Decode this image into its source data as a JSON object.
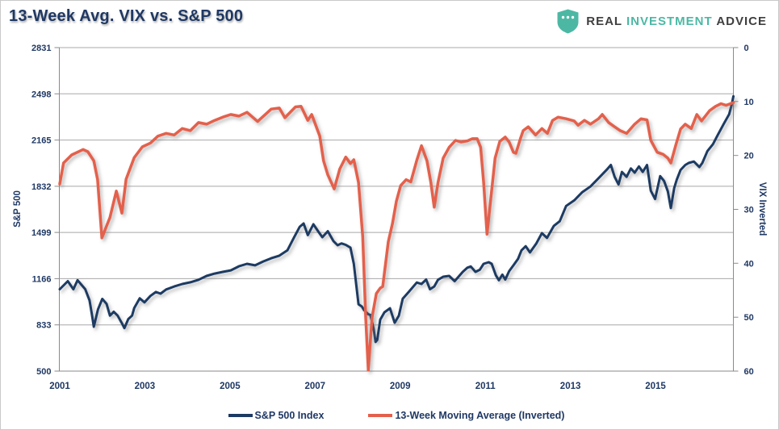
{
  "header": {
    "title": "13-Week Avg. VIX vs. S&P 500",
    "logo": {
      "part1": "REAL",
      "part2": "INVESTMENT",
      "part3": "ADVICE"
    }
  },
  "axes": {
    "left_title": "S&P 500",
    "right_title": "VIX Inverted"
  },
  "legend": {
    "items": [
      {
        "label": "S&P 500 Index"
      },
      {
        "label": "13-Week Moving Average (Inverted)"
      }
    ]
  },
  "colors": {
    "text_navy": "#1f3864",
    "sp500_line": "#1c3a63",
    "vix_line": "#e4604b",
    "gridline": "#a8a8a8",
    "axis_line": "#8a8a8a",
    "logo_teal": "#4cb8a4",
    "logo_dark": "#3f3f3f"
  },
  "chart_data": {
    "type": "line",
    "title": "13-Week Avg. VIX vs. S&P 500",
    "x_range": [
      2001,
      2016.83
    ],
    "x_ticks": [
      2001,
      2003,
      2005,
      2007,
      2009,
      2011,
      2013,
      2015
    ],
    "left_axis": {
      "label": "S&P 500",
      "range": [
        500,
        2831
      ],
      "ticks": [
        2831,
        2498,
        2165,
        1832,
        1499,
        1166,
        833,
        500
      ]
    },
    "right_axis": {
      "label": "VIX Inverted",
      "range": [
        0,
        60
      ],
      "ticks": [
        0,
        10,
        20,
        30,
        40,
        50,
        60
      ],
      "inverted": true
    },
    "grid": "horizontal",
    "legend_position": "bottom",
    "series": [
      {
        "name": "S&P 500 Index",
        "axis": "left",
        "color": "#1c3a63",
        "width": 3,
        "points": [
          [
            2001.0,
            1090
          ],
          [
            2001.19,
            1148
          ],
          [
            2001.32,
            1090
          ],
          [
            2001.42,
            1155
          ],
          [
            2001.6,
            1090
          ],
          [
            2001.7,
            1010
          ],
          [
            2001.76,
            900
          ],
          [
            2001.8,
            820
          ],
          [
            2001.9,
            945
          ],
          [
            2002.0,
            1020
          ],
          [
            2002.1,
            985
          ],
          [
            2002.18,
            900
          ],
          [
            2002.27,
            928
          ],
          [
            2002.36,
            900
          ],
          [
            2002.46,
            845
          ],
          [
            2002.52,
            810
          ],
          [
            2002.61,
            875
          ],
          [
            2002.7,
            900
          ],
          [
            2002.75,
            955
          ],
          [
            2002.88,
            1025
          ],
          [
            2002.99,
            995
          ],
          [
            2003.13,
            1042
          ],
          [
            2003.26,
            1070
          ],
          [
            2003.37,
            1058
          ],
          [
            2003.5,
            1088
          ],
          [
            2003.69,
            1110
          ],
          [
            2003.88,
            1128
          ],
          [
            2004.07,
            1140
          ],
          [
            2004.26,
            1158
          ],
          [
            2004.45,
            1186
          ],
          [
            2004.64,
            1203
          ],
          [
            2004.83,
            1215
          ],
          [
            2005.02,
            1226
          ],
          [
            2005.21,
            1255
          ],
          [
            2005.4,
            1273
          ],
          [
            2005.59,
            1262
          ],
          [
            2005.78,
            1290
          ],
          [
            2005.97,
            1313
          ],
          [
            2006.16,
            1332
          ],
          [
            2006.35,
            1370
          ],
          [
            2006.5,
            1460
          ],
          [
            2006.64,
            1540
          ],
          [
            2006.73,
            1564
          ],
          [
            2006.83,
            1480
          ],
          [
            2006.96,
            1558
          ],
          [
            2007.09,
            1500
          ],
          [
            2007.17,
            1465
          ],
          [
            2007.3,
            1508
          ],
          [
            2007.43,
            1437
          ],
          [
            2007.53,
            1407
          ],
          [
            2007.62,
            1420
          ],
          [
            2007.72,
            1410
          ],
          [
            2007.83,
            1390
          ],
          [
            2007.91,
            1273
          ],
          [
            2008.02,
            982
          ],
          [
            2008.1,
            965
          ],
          [
            2008.15,
            940
          ],
          [
            2008.25,
            910
          ],
          [
            2008.3,
            905
          ],
          [
            2008.38,
            800
          ],
          [
            2008.42,
            710
          ],
          [
            2008.46,
            725
          ],
          [
            2008.53,
            870
          ],
          [
            2008.63,
            924
          ],
          [
            2008.76,
            953
          ],
          [
            2008.87,
            848
          ],
          [
            2008.97,
            900
          ],
          [
            2009.06,
            1022
          ],
          [
            2009.2,
            1070
          ],
          [
            2009.39,
            1138
          ],
          [
            2009.5,
            1128
          ],
          [
            2009.61,
            1160
          ],
          [
            2009.7,
            1090
          ],
          [
            2009.8,
            1110
          ],
          [
            2009.89,
            1158
          ],
          [
            2010.01,
            1180
          ],
          [
            2010.15,
            1186
          ],
          [
            2010.28,
            1148
          ],
          [
            2010.37,
            1180
          ],
          [
            2010.47,
            1215
          ],
          [
            2010.58,
            1245
          ],
          [
            2010.66,
            1254
          ],
          [
            2010.77,
            1215
          ],
          [
            2010.87,
            1230
          ],
          [
            2010.96,
            1273
          ],
          [
            2011.08,
            1285
          ],
          [
            2011.15,
            1273
          ],
          [
            2011.25,
            1190
          ],
          [
            2011.32,
            1155
          ],
          [
            2011.4,
            1195
          ],
          [
            2011.47,
            1160
          ],
          [
            2011.56,
            1220
          ],
          [
            2011.68,
            1270
          ],
          [
            2011.77,
            1310
          ],
          [
            2011.85,
            1370
          ],
          [
            2011.95,
            1400
          ],
          [
            2012.05,
            1355
          ],
          [
            2012.2,
            1420
          ],
          [
            2012.33,
            1494
          ],
          [
            2012.45,
            1460
          ],
          [
            2012.61,
            1546
          ],
          [
            2012.75,
            1580
          ],
          [
            2012.9,
            1690
          ],
          [
            2013.09,
            1730
          ],
          [
            2013.28,
            1790
          ],
          [
            2013.47,
            1830
          ],
          [
            2013.66,
            1890
          ],
          [
            2013.85,
            1950
          ],
          [
            2013.95,
            1985
          ],
          [
            2014.04,
            1900
          ],
          [
            2014.13,
            1845
          ],
          [
            2014.21,
            1935
          ],
          [
            2014.32,
            1900
          ],
          [
            2014.42,
            1960
          ],
          [
            2014.51,
            1930
          ],
          [
            2014.61,
            1975
          ],
          [
            2014.7,
            1935
          ],
          [
            2014.8,
            1985
          ],
          [
            2014.89,
            1800
          ],
          [
            2014.99,
            1740
          ],
          [
            2015.11,
            1905
          ],
          [
            2015.2,
            1870
          ],
          [
            2015.29,
            1795
          ],
          [
            2015.36,
            1675
          ],
          [
            2015.44,
            1820
          ],
          [
            2015.5,
            1880
          ],
          [
            2015.59,
            1950
          ],
          [
            2015.7,
            1985
          ],
          [
            2015.78,
            2000
          ],
          [
            2015.9,
            2010
          ],
          [
            2016.03,
            1970
          ],
          [
            2016.1,
            2000
          ],
          [
            2016.22,
            2085
          ],
          [
            2016.35,
            2135
          ],
          [
            2016.46,
            2200
          ],
          [
            2016.6,
            2280
          ],
          [
            2016.73,
            2350
          ],
          [
            2016.79,
            2420
          ],
          [
            2016.83,
            2480
          ]
        ]
      },
      {
        "name": "13-Week Moving Average (Inverted)",
        "axis": "right",
        "color": "#e4604b",
        "width": 3.5,
        "points": [
          [
            2001.0,
            25.3
          ],
          [
            2001.09,
            21.4
          ],
          [
            2001.28,
            19.9
          ],
          [
            2001.55,
            18.9
          ],
          [
            2001.66,
            19.3
          ],
          [
            2001.8,
            21.0
          ],
          [
            2001.89,
            24.5
          ],
          [
            2001.99,
            35.3
          ],
          [
            2002.18,
            31.5
          ],
          [
            2002.33,
            26.6
          ],
          [
            2002.46,
            30.7
          ],
          [
            2002.56,
            24.4
          ],
          [
            2002.75,
            20.4
          ],
          [
            2002.94,
            18.4
          ],
          [
            2003.13,
            17.7
          ],
          [
            2003.31,
            16.4
          ],
          [
            2003.5,
            15.9
          ],
          [
            2003.69,
            16.2
          ],
          [
            2003.88,
            15.0
          ],
          [
            2004.07,
            15.4
          ],
          [
            2004.26,
            13.9
          ],
          [
            2004.45,
            14.2
          ],
          [
            2004.64,
            13.5
          ],
          [
            2004.83,
            12.9
          ],
          [
            2005.02,
            12.4
          ],
          [
            2005.21,
            12.7
          ],
          [
            2005.4,
            12.0
          ],
          [
            2005.65,
            13.7
          ],
          [
            2005.97,
            11.4
          ],
          [
            2006.16,
            11.2
          ],
          [
            2006.29,
            13.0
          ],
          [
            2006.54,
            11.0
          ],
          [
            2006.67,
            10.9
          ],
          [
            2006.83,
            13.5
          ],
          [
            2006.92,
            12.4
          ],
          [
            2007.11,
            16.4
          ],
          [
            2007.2,
            21.0
          ],
          [
            2007.3,
            23.6
          ],
          [
            2007.45,
            26.2
          ],
          [
            2007.58,
            22.5
          ],
          [
            2007.72,
            20.3
          ],
          [
            2007.83,
            21.5
          ],
          [
            2007.91,
            20.8
          ],
          [
            2008.02,
            25.0
          ],
          [
            2008.12,
            35.0
          ],
          [
            2008.19,
            50.0
          ],
          [
            2008.25,
            59.8
          ],
          [
            2008.34,
            50.0
          ],
          [
            2008.44,
            45.6
          ],
          [
            2008.53,
            44.6
          ],
          [
            2008.59,
            44.3
          ],
          [
            2008.72,
            36.0
          ],
          [
            2008.82,
            32.6
          ],
          [
            2008.91,
            28.5
          ],
          [
            2009.01,
            25.6
          ],
          [
            2009.14,
            24.5
          ],
          [
            2009.25,
            24.9
          ],
          [
            2009.39,
            20.9
          ],
          [
            2009.5,
            18.2
          ],
          [
            2009.63,
            21.0
          ],
          [
            2009.72,
            25.0
          ],
          [
            2009.8,
            29.6
          ],
          [
            2009.89,
            25.0
          ],
          [
            2010.01,
            20.5
          ],
          [
            2010.15,
            18.5
          ],
          [
            2010.3,
            17.2
          ],
          [
            2010.43,
            17.5
          ],
          [
            2010.58,
            17.3
          ],
          [
            2010.7,
            16.9
          ],
          [
            2010.81,
            16.9
          ],
          [
            2010.89,
            18.5
          ],
          [
            2010.96,
            25.0
          ],
          [
            2011.04,
            34.6
          ],
          [
            2011.13,
            28.0
          ],
          [
            2011.23,
            20.5
          ],
          [
            2011.34,
            17.4
          ],
          [
            2011.47,
            16.6
          ],
          [
            2011.56,
            17.5
          ],
          [
            2011.66,
            19.4
          ],
          [
            2011.72,
            19.6
          ],
          [
            2011.82,
            17.0
          ],
          [
            2011.89,
            15.4
          ],
          [
            2012.01,
            14.7
          ],
          [
            2012.18,
            16.2
          ],
          [
            2012.33,
            15.0
          ],
          [
            2012.46,
            15.9
          ],
          [
            2012.58,
            13.5
          ],
          [
            2012.71,
            12.9
          ],
          [
            2012.9,
            13.2
          ],
          [
            2013.09,
            13.6
          ],
          [
            2013.18,
            14.4
          ],
          [
            2013.33,
            13.5
          ],
          [
            2013.47,
            14.2
          ],
          [
            2013.66,
            13.2
          ],
          [
            2013.75,
            12.4
          ],
          [
            2013.9,
            13.9
          ],
          [
            2014.04,
            14.7
          ],
          [
            2014.17,
            15.4
          ],
          [
            2014.32,
            15.9
          ],
          [
            2014.51,
            14.2
          ],
          [
            2014.66,
            13.2
          ],
          [
            2014.8,
            13.4
          ],
          [
            2014.89,
            17.2
          ],
          [
            2015.04,
            19.4
          ],
          [
            2015.18,
            19.8
          ],
          [
            2015.29,
            20.5
          ],
          [
            2015.36,
            21.4
          ],
          [
            2015.48,
            18.0
          ],
          [
            2015.59,
            15.1
          ],
          [
            2015.7,
            14.2
          ],
          [
            2015.84,
            15.0
          ],
          [
            2015.97,
            12.4
          ],
          [
            2016.08,
            13.6
          ],
          [
            2016.27,
            11.7
          ],
          [
            2016.41,
            10.9
          ],
          [
            2016.54,
            10.4
          ],
          [
            2016.66,
            10.7
          ],
          [
            2016.83,
            10.2
          ]
        ]
      }
    ]
  }
}
